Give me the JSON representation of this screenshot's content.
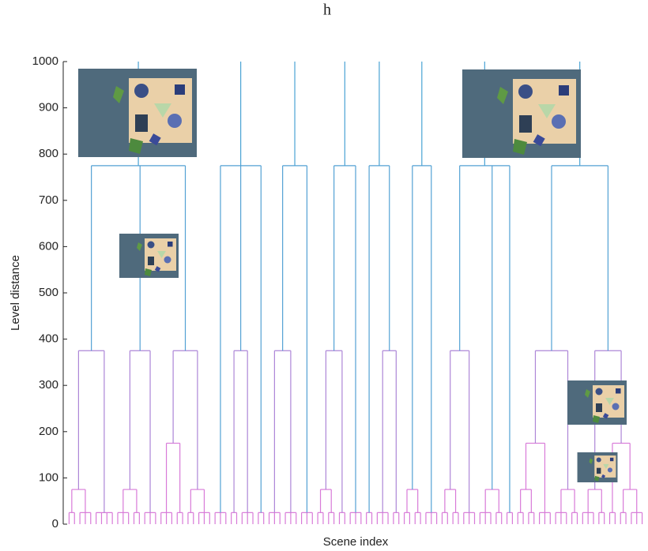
{
  "chart_data": {
    "type": "dendrogram",
    "title": "h",
    "x_label": "Scene index",
    "y_label": "Level distance",
    "ylim": [
      0,
      1000
    ],
    "yticks": [
      0,
      100,
      200,
      300,
      400,
      500,
      600,
      700,
      800,
      900,
      1000
    ],
    "colors": {
      "low": "#d87ad8",
      "high": "#4aa3d4"
    },
    "clusters": [
      {
        "height": 775,
        "children": [
          {
            "height": 375,
            "children": [
              {
                "height": 75,
                "children": [
                  {
                    "height": 25,
                    "leaves": 2
                  },
                  {
                    "height": 25,
                    "leaves": 3
                  }
                ]
              },
              {
                "height": 25,
                "leaves": 4
              }
            ]
          },
          {
            "height": 375,
            "children": [
              {
                "height": 75,
                "children": [
                  {
                    "height": 25,
                    "leaves": 3
                  },
                  {
                    "height": 25,
                    "leaves": 2
                  }
                ]
              },
              {
                "height": 25,
                "leaves": 3
              }
            ]
          },
          {
            "height": 375,
            "children": [
              {
                "height": 175,
                "children": [
                  {
                    "height": 25,
                    "leaves": 3
                  },
                  {
                    "height": 25,
                    "leaves": 2
                  }
                ]
              },
              {
                "height": 75,
                "children": [
                  {
                    "height": 25,
                    "leaves": 2
                  },
                  {
                    "height": 25,
                    "leaves": 3
                  }
                ]
              }
            ]
          }
        ]
      },
      {
        "height": 775,
        "children": [
          {
            "height": 25,
            "leaves": 3
          },
          {
            "height": 375,
            "children": [
              {
                "height": 25,
                "leaves": 2
              },
              {
                "height": 25,
                "leaves": 3
              }
            ]
          },
          {
            "height": 25,
            "leaves": 2
          }
        ]
      },
      {
        "height": 775,
        "children": [
          {
            "height": 375,
            "children": [
              {
                "height": 25,
                "leaves": 3
              },
              {
                "height": 25,
                "leaves": 3
              }
            ]
          },
          {
            "height": 25,
            "leaves": 3
          }
        ]
      },
      {
        "height": 775,
        "children": [
          {
            "height": 375,
            "children": [
              {
                "height": 75,
                "children": [
                  {
                    "height": 25,
                    "leaves": 2
                  },
                  {
                    "height": 25,
                    "leaves": 2
                  }
                ]
              },
              {
                "height": 25,
                "leaves": 2
              }
            ]
          },
          {
            "height": 25,
            "leaves": 3
          }
        ]
      },
      {
        "height": 775,
        "children": [
          {
            "height": 25,
            "leaves": 2
          },
          {
            "height": 375,
            "children": [
              {
                "height": 25,
                "leaves": 3
              },
              {
                "height": 25,
                "leaves": 2
              }
            ]
          }
        ]
      },
      {
        "height": 775,
        "children": [
          {
            "height": 75,
            "children": [
              {
                "height": 25,
                "leaves": 2
              },
              {
                "height": 25,
                "leaves": 2
              }
            ]
          },
          {
            "height": 25,
            "leaves": 3
          }
        ]
      },
      {
        "height": 775,
        "children": [
          {
            "height": 375,
            "children": [
              {
                "height": 75,
                "children": [
                  {
                    "height": 25,
                    "leaves": 2
                  },
                  {
                    "height": 25,
                    "leaves": 2
                  }
                ]
              },
              {
                "height": 25,
                "leaves": 3
              }
            ]
          },
          {
            "height": 75,
            "children": [
              {
                "height": 25,
                "leaves": 3
              },
              {
                "height": 25,
                "leaves": 2
              }
            ]
          },
          {
            "height": 25,
            "leaves": 2
          }
        ]
      },
      {
        "height": 775,
        "children": [
          {
            "height": 375,
            "children": [
              {
                "height": 175,
                "children": [
                  {
                    "height": 75,
                    "children": [
                      {
                        "height": 25,
                        "leaves": 2
                      },
                      {
                        "height": 25,
                        "leaves": 2
                      }
                    ]
                  },
                  {
                    "height": 25,
                    "leaves": 3
                  }
                ]
              },
              {
                "height": 75,
                "children": [
                  {
                    "height": 25,
                    "leaves": 3
                  },
                  {
                    "height": 25,
                    "leaves": 2
                  }
                ]
              }
            ]
          },
          {
            "height": 375,
            "children": [
              {
                "height": 75,
                "children": [
                  {
                    "height": 25,
                    "leaves": 3
                  },
                  {
                    "height": 25,
                    "leaves": 2
                  }
                ]
              },
              {
                "height": 175,
                "children": [
                  {
                    "height": 25,
                    "leaves": 2
                  },
                  {
                    "height": 75,
                    "children": [
                      {
                        "height": 25,
                        "leaves": 2
                      },
                      {
                        "height": 25,
                        "leaves": 3
                      }
                    ]
                  }
                ]
              }
            ]
          }
        ]
      }
    ]
  }
}
